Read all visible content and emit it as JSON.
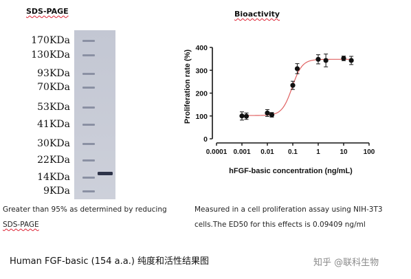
{
  "gel": {
    "title": "SDS-PAGE",
    "markers": [
      "170KDa",
      "130KDa",
      "93KDa",
      "70KDa",
      "53KDa",
      "41KDa",
      "30KDa",
      "22KDa",
      "14KDa",
      "9KDa"
    ],
    "caption_line1": "Greater than 95% as determined by reducing",
    "caption_line2": "SDS-PAGE"
  },
  "bioactivity": {
    "title": "Bioactivity",
    "caption_line1": "Measured in a cell proliferation assay using NIH-3T3",
    "caption_line2": "cells.The ED50 for this effects is 0.09409 ng/ml"
  },
  "chart_data": {
    "type": "scatter",
    "title": "",
    "xlabel": "hFGF-basic concentration (ng/mL)",
    "ylabel": "Proliferation rate (%)",
    "x_scale": "log",
    "xlim": [
      0.0001,
      100
    ],
    "ylim": [
      0,
      400
    ],
    "x_ticks": [
      "0.0001",
      "0.001",
      "0.01",
      "0.1",
      "1",
      "10",
      "100"
    ],
    "y_ticks": [
      "0",
      "100",
      "200",
      "300",
      "400"
    ],
    "grid": false,
    "point_color": "#111111",
    "fit_color": "#e06060",
    "points": [
      {
        "x": 0.001,
        "y": 100,
        "err": 18
      },
      {
        "x": 0.0015,
        "y": 99,
        "err": 14
      },
      {
        "x": 0.01,
        "y": 113,
        "err": 15
      },
      {
        "x": 0.015,
        "y": 105,
        "err": 10
      },
      {
        "x": 0.1,
        "y": 234,
        "err": 18
      },
      {
        "x": 0.15,
        "y": 307,
        "err": 22
      },
      {
        "x": 1,
        "y": 348,
        "err": 20
      },
      {
        "x": 2,
        "y": 343,
        "err": 28
      },
      {
        "x": 10,
        "y": 352,
        "err": 10
      },
      {
        "x": 20,
        "y": 343,
        "err": 18
      }
    ],
    "fit": {
      "bottom": 102,
      "top": 348,
      "ec50": 0.09409,
      "hill": 2.2
    }
  },
  "footer": {
    "title": "Human FGF-basic (154 a.a.) 纯度和活性结果图",
    "watermark": "知乎 @联科生物"
  }
}
